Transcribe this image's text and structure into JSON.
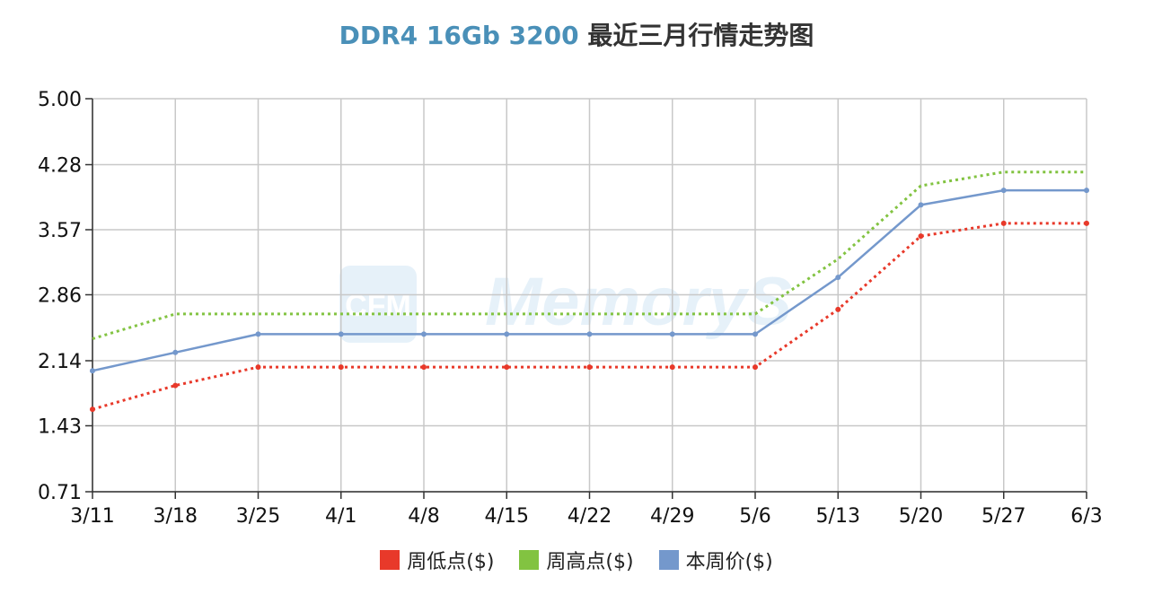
{
  "chart_data": {
    "type": "line",
    "title": "DDR4 16Gb 3200",
    "subtitle": "最近三月行情走势图",
    "categories": [
      "3/11",
      "3/18",
      "3/25",
      "4/1",
      "4/8",
      "4/15",
      "4/22",
      "4/29",
      "5/6",
      "5/13",
      "5/20",
      "5/27",
      "6/3"
    ],
    "yticks": [
      "0.71",
      "1.43",
      "2.14",
      "2.86",
      "3.57",
      "4.28",
      "5.00"
    ],
    "ylim": [
      0.71,
      5.0
    ],
    "grid": true,
    "legend_position": "bottom-center",
    "series": [
      {
        "name": "周低点($)",
        "color": "#e8392a",
        "style": "dotted",
        "markers": true,
        "values": [
          1.61,
          1.87,
          2.07,
          2.07,
          2.07,
          2.07,
          2.07,
          2.07,
          2.07,
          2.7,
          3.5,
          3.64,
          3.64
        ]
      },
      {
        "name": "周高点($)",
        "color": "#82c341",
        "style": "dotted",
        "markers": false,
        "values": [
          2.38,
          2.65,
          2.65,
          2.65,
          2.65,
          2.65,
          2.65,
          2.65,
          2.65,
          3.25,
          4.05,
          4.2,
          4.2
        ]
      },
      {
        "name": "本周价($)",
        "color": "#7498cc",
        "style": "solid",
        "markers": true,
        "values": [
          2.03,
          2.23,
          2.43,
          2.43,
          2.43,
          2.43,
          2.43,
          2.43,
          2.43,
          3.05,
          3.84,
          4.0,
          4.0
        ]
      }
    ]
  },
  "watermark": "CFM MemoryS"
}
